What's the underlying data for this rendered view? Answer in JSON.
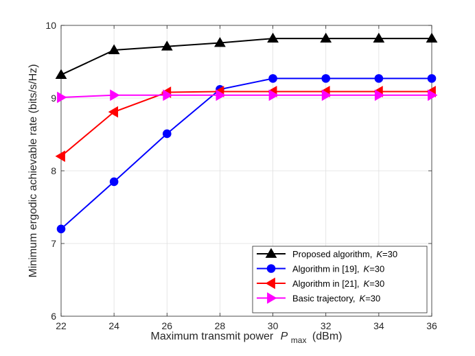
{
  "chart_data": {
    "type": "line",
    "xlabel": "Maximum transmit power",
    "xlabel_symbol": "P",
    "xlabel_subscript": "max",
    "xlabel_unit": "(dBm)",
    "ylabel": "Minimum ergodic achievable rate (bits/s/Hz)",
    "xlim": [
      22,
      36
    ],
    "ylim": [
      6,
      10
    ],
    "grid": true,
    "legend_position": "bottom-right",
    "x": [
      22,
      24,
      26,
      28,
      30,
      32,
      34,
      36
    ],
    "x_tick_labels": [
      "22",
      "24",
      "26",
      "28",
      "30",
      "32",
      "34",
      "36"
    ],
    "y_ticks": [
      6,
      7,
      8,
      9,
      10
    ],
    "y_tick_labels": [
      "6",
      "7",
      "8",
      "9",
      "10"
    ],
    "series": [
      {
        "name": "Proposed algorithm,",
        "param_symbol": "K",
        "param_value": "=30",
        "color": "#000000",
        "marker": "triangle-up",
        "values": [
          9.32,
          9.66,
          9.71,
          9.76,
          9.82,
          9.82,
          9.82,
          9.82
        ]
      },
      {
        "name": "Algorithm in [19],",
        "param_symbol": "K",
        "param_value": "=30",
        "color": "#0000ff",
        "marker": "circle",
        "values": [
          7.2,
          7.85,
          8.51,
          9.12,
          9.27,
          9.27,
          9.27,
          9.27
        ]
      },
      {
        "name": "Algorithm in [21],",
        "param_symbol": "K",
        "param_value": "=30",
        "color": "#ff0000",
        "marker": "triangle-left",
        "values": [
          8.2,
          8.81,
          9.08,
          9.09,
          9.09,
          9.09,
          9.09,
          9.09
        ]
      },
      {
        "name": "Basic trajectory,",
        "param_symbol": "K",
        "param_value": "=30",
        "color": "#ff00ff",
        "marker": "triangle-right",
        "values": [
          9.01,
          9.04,
          9.04,
          9.04,
          9.04,
          9.04,
          9.04,
          9.04
        ]
      }
    ]
  }
}
